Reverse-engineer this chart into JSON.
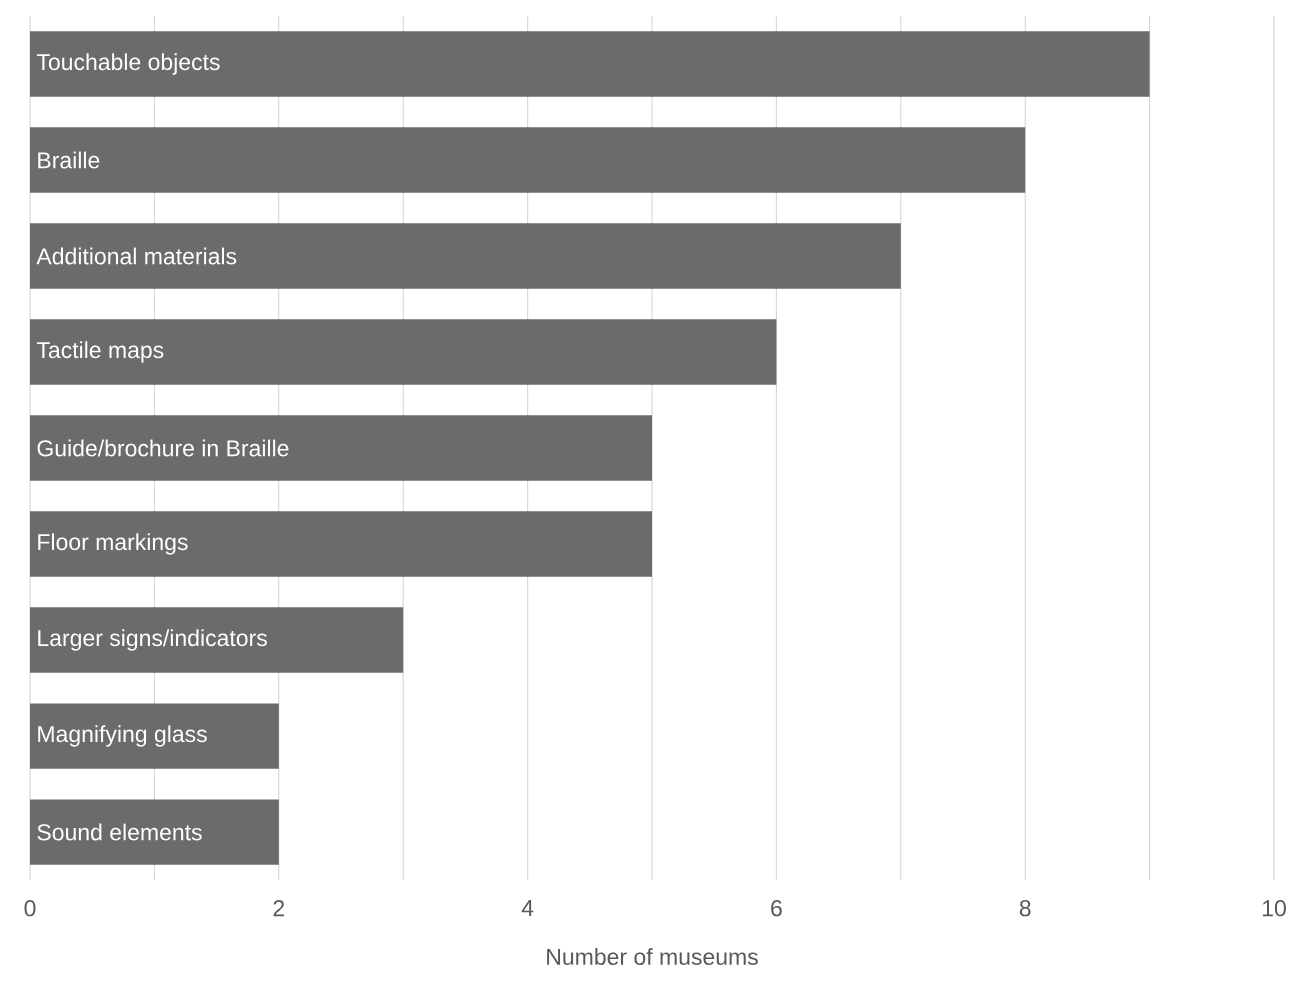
{
  "chart_data": {
    "type": "bar",
    "orientation": "horizontal",
    "xlabel": "Number of museums",
    "categories": [
      "Touchable objects",
      "Braille",
      "Additional materials",
      "Tactile maps",
      "Guide/brochure in Braille",
      "Floor markings",
      "Larger signs/indicators",
      "Magnifying glass",
      "Sound elements"
    ],
    "values": [
      9,
      8,
      7,
      6,
      5,
      5,
      3,
      2,
      2
    ],
    "color": "#6b6b6b",
    "xlim": [
      0,
      10
    ],
    "xticks": [
      0,
      {
        "value": 1,
        "label": null
      },
      2,
      {
        "value": 3,
        "label": null
      },
      4,
      {
        "value": 5,
        "label": null
      },
      6,
      {
        "value": 7,
        "label": null
      },
      8,
      {
        "value": 9,
        "label": null
      },
      10
    ],
    "grid": "x"
  }
}
